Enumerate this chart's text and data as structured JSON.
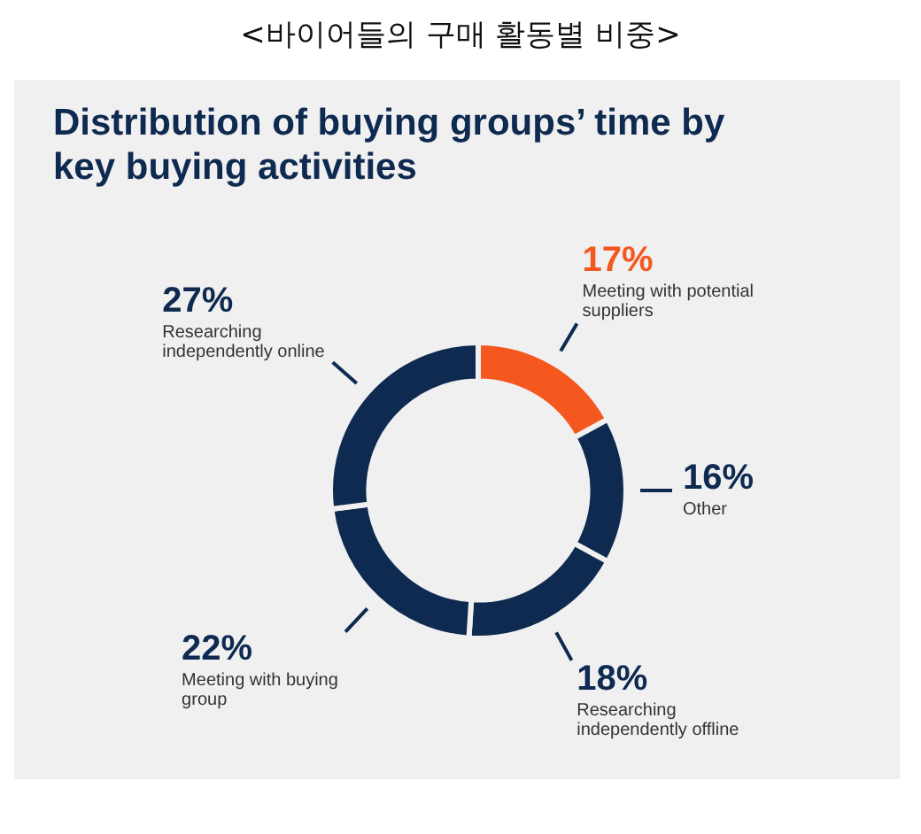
{
  "chart_data": {
    "type": "donut",
    "title": "<바이어들의 구매 활동별 비중>",
    "subtitle": "Distribution of buying groups’ time by key buying activities",
    "categories": [
      "Meeting with potential suppliers",
      "Other",
      "Researching independently offline",
      "Meeting with buying group",
      "Researching independently online"
    ],
    "values": [
      17,
      16,
      18,
      22,
      27
    ],
    "colors": [
      "#f4581f",
      "#0f2a50",
      "#0f2a50",
      "#0f2a50",
      "#0f2a50"
    ],
    "value_labels": [
      "17%",
      "16%",
      "18%",
      "22%",
      "27%"
    ],
    "legend": false
  }
}
